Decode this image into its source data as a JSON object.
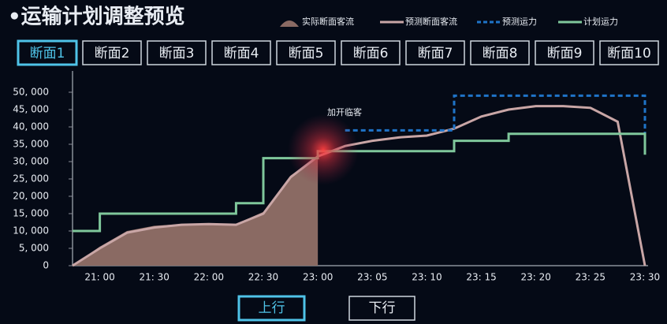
{
  "header": {
    "title": "•运输计划调整预览"
  },
  "tabs": [
    "断面1",
    "断面2",
    "断面3",
    "断面4",
    "断面5",
    "断面6",
    "断面7",
    "断面8",
    "断面9",
    "断面10"
  ],
  "active_tab": 0,
  "buttons": [
    "上行",
    "下行"
  ],
  "active_button": 0,
  "chart_data": {
    "type": "line",
    "annotation": "加开临客",
    "categories": [
      null,
      "21: 00",
      null,
      "21: 30",
      null,
      "22: 00",
      null,
      "22: 30",
      null,
      "23: 00",
      null,
      "23: 05",
      null,
      "23: 10",
      null,
      "23: 15",
      null,
      "23: 20",
      null,
      "23: 25",
      null,
      "23: 30"
    ],
    "ylim": [
      0,
      55000
    ],
    "yticks": [
      0,
      {
        "value": 5000,
        "label": "5, 000"
      },
      {
        "value": 10000,
        "label": "10, 000"
      },
      {
        "value": 15000,
        "label": "15, 000"
      },
      {
        "value": 20000,
        "label": "20, 000"
      },
      {
        "value": 25000,
        "label": "25, 000"
      },
      {
        "value": 30000,
        "label": "30, 000"
      },
      {
        "value": 35000,
        "label": "35, 000"
      },
      {
        "value": 40000,
        "label": "40, 000"
      },
      {
        "value": 45000,
        "label": "45, 000"
      },
      {
        "value": 50000,
        "label": "50, 000"
      }
    ],
    "series": [
      {
        "name": "实际断面客流",
        "color": "#8a6a63",
        "kind": "area",
        "values": [
          0,
          5500,
          10000,
          11500,
          12000,
          12000,
          12000,
          15500,
          26000,
          31500,
          null,
          null,
          null,
          null,
          null,
          null,
          null,
          null,
          null,
          null,
          null,
          null
        ]
      },
      {
        "name": "预测断面客流",
        "color": "#c9a6a6",
        "kind": "line",
        "values": [
          0,
          5000,
          9500,
          11000,
          11800,
          12000,
          11800,
          15000,
          25500,
          31500,
          34500,
          36000,
          37000,
          37500,
          39500,
          43000,
          45000,
          46000,
          46000,
          45500,
          41500,
          0
        ]
      },
      {
        "name": "预测运力",
        "color": "#1f74c8",
        "kind": "dashed",
        "step": true,
        "values": [
          null,
          null,
          null,
          null,
          null,
          null,
          null,
          null,
          null,
          null,
          39000,
          39000,
          39000,
          39000,
          49000,
          49000,
          49000,
          49000,
          49000,
          49000,
          49000,
          32000
        ]
      },
      {
        "name": "计划运力",
        "color": "#7fc79b",
        "kind": "line",
        "step": true,
        "values": [
          10000,
          15000,
          15000,
          15000,
          15000,
          15000,
          18000,
          31000,
          31000,
          33000,
          33000,
          33000,
          33000,
          33000,
          36000,
          36000,
          38000,
          38000,
          38000,
          38000,
          38000,
          32000
        ]
      }
    ]
  }
}
